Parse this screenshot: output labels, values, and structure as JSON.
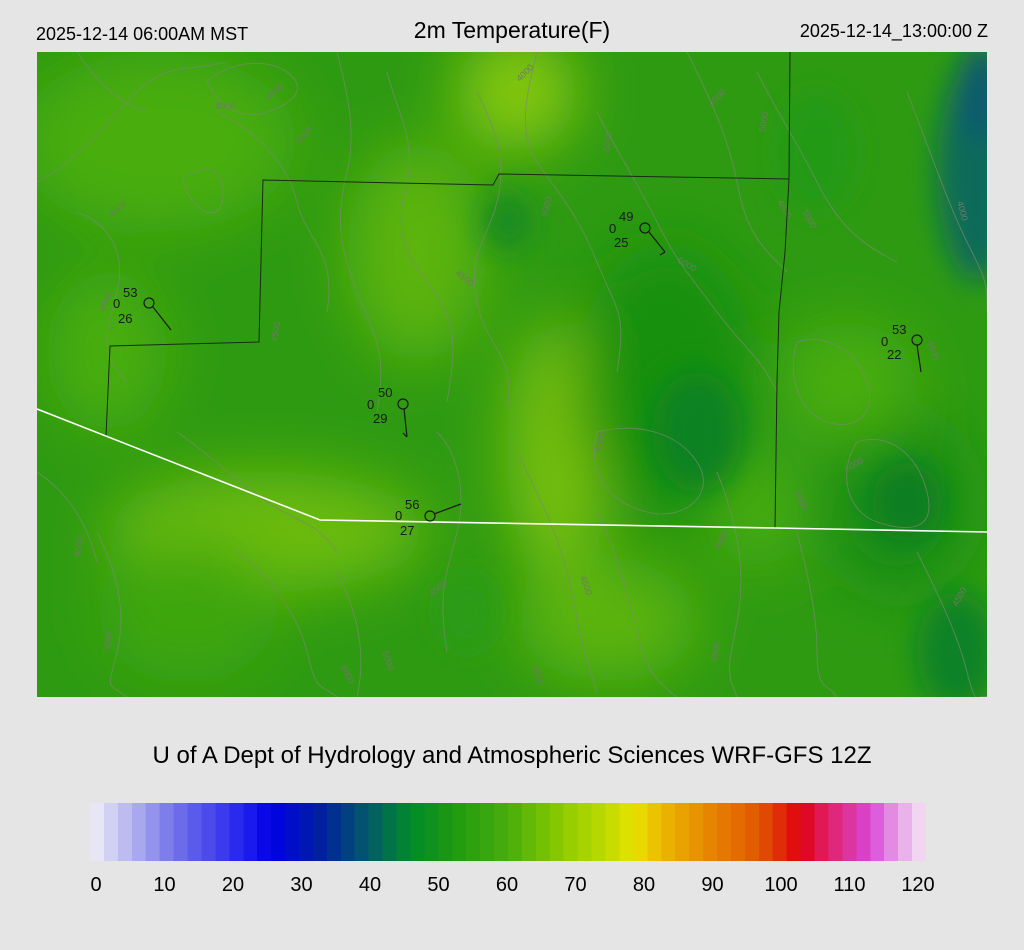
{
  "header": {
    "local_time": "2025-12-14 06:00AM MST",
    "title": "2m Temperature(F)",
    "utc_time": "2025-12-14_13:00:00 Z"
  },
  "credit": "U of A Dept of Hydrology and Atmospheric Sciences WRF-GFS 12Z",
  "colorbar": {
    "ticks": [
      "0",
      "10",
      "20",
      "30",
      "40",
      "50",
      "60",
      "70",
      "80",
      "90",
      "100",
      "110",
      "120"
    ],
    "range": [
      0,
      120
    ],
    "stops": [
      {
        "v": 0,
        "c": "#f0f0f6"
      },
      {
        "v": 12,
        "c": "#7474ea"
      },
      {
        "v": 22,
        "c": "#2222ee"
      },
      {
        "v": 26,
        "c": "#0000e6"
      },
      {
        "v": 33,
        "c": "#0020a0"
      },
      {
        "v": 40,
        "c": "#045a68"
      },
      {
        "v": 46,
        "c": "#008a2a"
      },
      {
        "v": 52,
        "c": "#1e9a10"
      },
      {
        "v": 60,
        "c": "#48ad0c"
      },
      {
        "v": 68,
        "c": "#8ecc00"
      },
      {
        "v": 75,
        "c": "#c8dc00"
      },
      {
        "v": 78,
        "c": "#e8e400"
      },
      {
        "v": 82,
        "c": "#ecb800"
      },
      {
        "v": 90,
        "c": "#e67e00"
      },
      {
        "v": 96,
        "c": "#e05800"
      },
      {
        "v": 102,
        "c": "#e00010"
      },
      {
        "v": 106,
        "c": "#e0206a"
      },
      {
        "v": 112,
        "c": "#d848d8"
      },
      {
        "v": 116,
        "c": "#e6a0e6"
      },
      {
        "v": 120,
        "c": "#f4e6f4"
      }
    ]
  },
  "map": {
    "stations": [
      {
        "temp": "53",
        "wind": "0",
        "dew": "26"
      },
      {
        "temp": "49",
        "wind": "0",
        "dew": "25"
      },
      {
        "temp": "53",
        "wind": "0",
        "dew": "22"
      },
      {
        "temp": "50",
        "wind": "0",
        "dew": "29"
      },
      {
        "temp": "56",
        "wind": "0",
        "dew": "27"
      }
    ],
    "contour_labels": [
      "4000",
      "4500",
      "4000",
      "5000",
      "5000",
      "4500",
      "5000",
      "4000",
      "4500",
      "5000",
      "4500",
      "5000",
      "4500",
      "4000",
      "4500",
      "5000",
      "5000",
      "4500",
      "6000",
      "4500",
      "4500",
      "4000",
      "5000",
      "4500",
      "4000",
      "5000",
      "4500",
      "5000",
      "4500",
      "5000"
    ]
  }
}
